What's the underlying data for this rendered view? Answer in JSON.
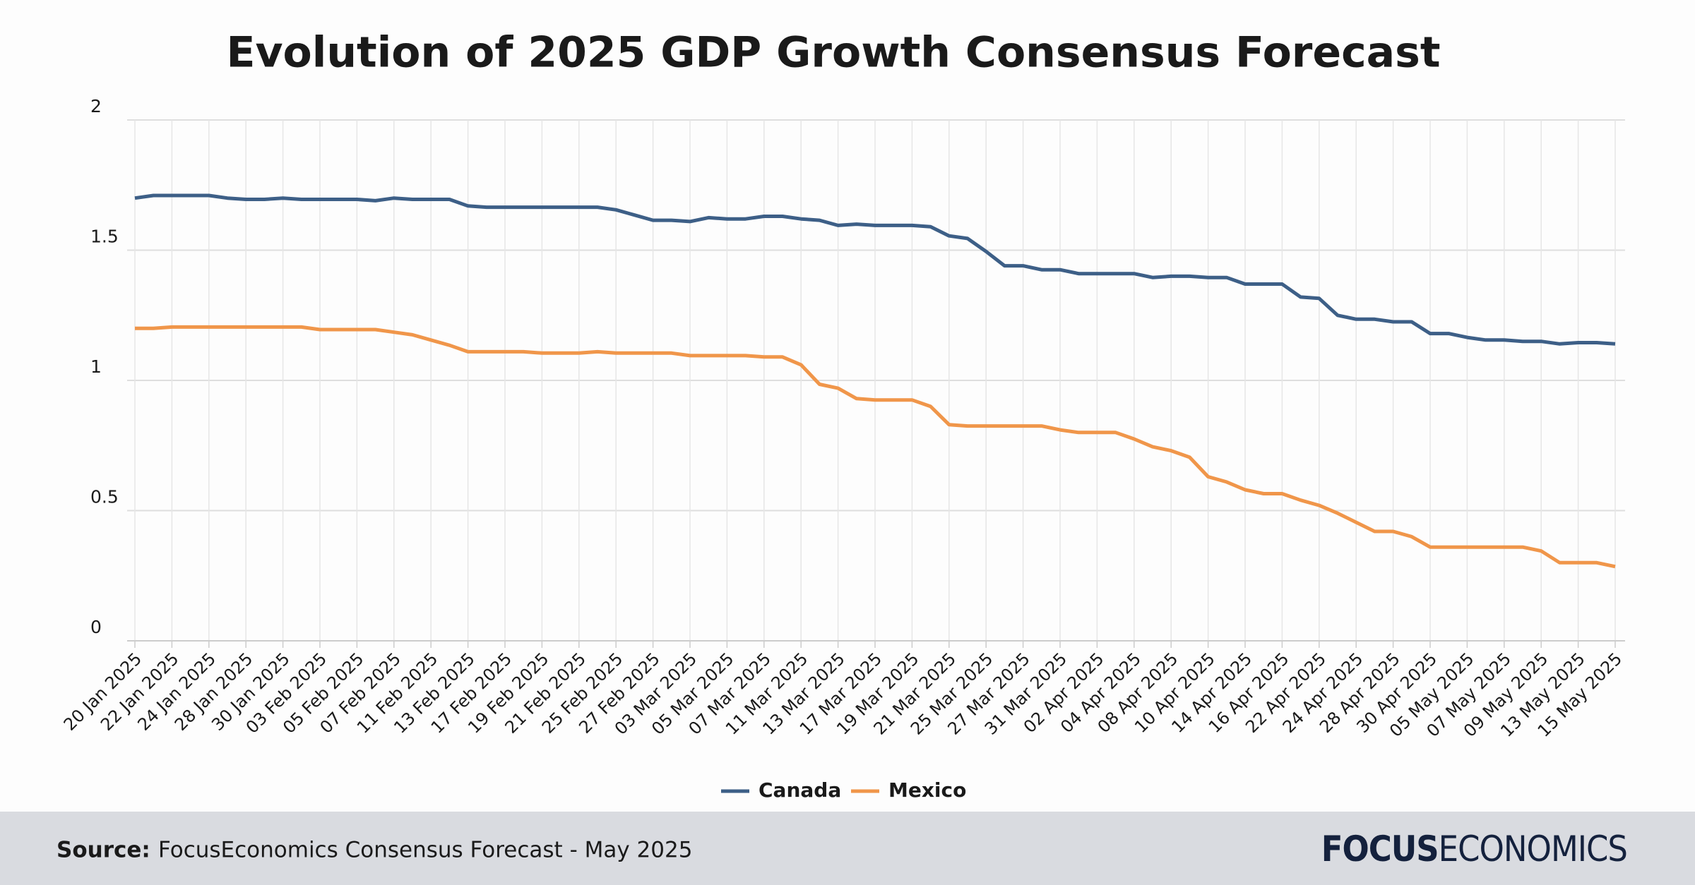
{
  "chart_data": {
    "type": "line",
    "title": "Evolution of 2025 GDP Growth Consensus Forecast",
    "categories": [
      "20 Jan 2025",
      null,
      "22 Jan 2025",
      null,
      "24 Jan 2025",
      null,
      "28 Jan 2025",
      null,
      "30 Jan 2025",
      null,
      "03 Feb 2025",
      null,
      "05 Feb 2025",
      null,
      "07 Feb 2025",
      null,
      "11 Feb 2025",
      null,
      "13 Feb 2025",
      null,
      "17 Feb 2025",
      null,
      "19 Feb 2025",
      null,
      "21 Feb 2025",
      null,
      "25 Feb 2025",
      null,
      "27 Feb 2025",
      null,
      "03 Mar 2025",
      null,
      "05 Mar 2025",
      null,
      "07 Mar 2025",
      null,
      "11 Mar 2025",
      null,
      "13 Mar 2025",
      null,
      "17 Mar 2025",
      null,
      "19 Mar 2025",
      null,
      "21 Mar 2025",
      null,
      "25 Mar 2025",
      null,
      "27 Mar 2025",
      null,
      "31 Mar 2025",
      null,
      "02 Apr 2025",
      null,
      "04 Apr 2025",
      null,
      "08 Apr 2025",
      null,
      "10 Apr 2025",
      null,
      "14 Apr 2025",
      null,
      "16 Apr 2025",
      null,
      "22 Apr 2025",
      null,
      "24 Apr 2025",
      null,
      "28 Apr 2025",
      null,
      "30 Apr 2025",
      null,
      "05 May 2025",
      null,
      "07 May 2025",
      null,
      "09 May 2025",
      null,
      "13 May 2025",
      null,
      "15 May 2025"
    ],
    "series": [
      {
        "name": "Canada",
        "color": "#3d5f87",
        "values": [
          1.7,
          1.71,
          1.71,
          1.71,
          1.71,
          1.7,
          1.695,
          1.695,
          1.7,
          1.695,
          1.695,
          1.695,
          1.695,
          1.69,
          1.7,
          1.695,
          1.695,
          1.695,
          1.67,
          1.665,
          1.665,
          1.665,
          1.665,
          1.665,
          1.665,
          1.665,
          1.655,
          1.635,
          1.615,
          1.615,
          1.61,
          1.625,
          1.62,
          1.62,
          1.63,
          1.63,
          1.62,
          1.615,
          1.595,
          1.6,
          1.595,
          1.595,
          1.595,
          1.59,
          1.555,
          1.545,
          1.495,
          1.44,
          1.44,
          1.425,
          1.425,
          1.41,
          1.41,
          1.41,
          1.41,
          1.395,
          1.4,
          1.4,
          1.395,
          1.395,
          1.37,
          1.37,
          1.37,
          1.32,
          1.315,
          1.25,
          1.235,
          1.235,
          1.225,
          1.225,
          1.18,
          1.18,
          1.165,
          1.155,
          1.155,
          1.15,
          1.15,
          1.14,
          1.145,
          1.145,
          1.14
        ]
      },
      {
        "name": "Mexico",
        "color": "#f0964a",
        "values": [
          1.2,
          1.2,
          1.205,
          1.205,
          1.205,
          1.205,
          1.205,
          1.205,
          1.205,
          1.205,
          1.195,
          1.195,
          1.195,
          1.195,
          1.185,
          1.175,
          1.155,
          1.135,
          1.11,
          1.11,
          1.11,
          1.11,
          1.105,
          1.105,
          1.105,
          1.11,
          1.105,
          1.105,
          1.105,
          1.105,
          1.095,
          1.095,
          1.095,
          1.095,
          1.09,
          1.09,
          1.06,
          0.985,
          0.97,
          0.93,
          0.925,
          0.925,
          0.925,
          0.9,
          0.83,
          0.825,
          0.825,
          0.825,
          0.825,
          0.825,
          0.81,
          0.8,
          0.8,
          0.8,
          0.775,
          0.745,
          0.73,
          0.705,
          0.63,
          0.61,
          0.58,
          0.565,
          0.565,
          0.54,
          0.52,
          0.49,
          0.455,
          0.42,
          0.42,
          0.4,
          0.36,
          0.36,
          0.36,
          0.36,
          0.36,
          0.36,
          0.345,
          0.3,
          0.3,
          0.3,
          0.285
        ]
      }
    ],
    "ylim": [
      0,
      2
    ],
    "yticks": [
      0,
      0.5,
      1,
      1.5,
      2
    ],
    "grid": true,
    "legend": "bottom",
    "source_label": "Source:",
    "source": "FocusEconomics Consensus Forecast - May 2025",
    "logo": [
      "FOCUS",
      "ECONOMICS"
    ]
  }
}
